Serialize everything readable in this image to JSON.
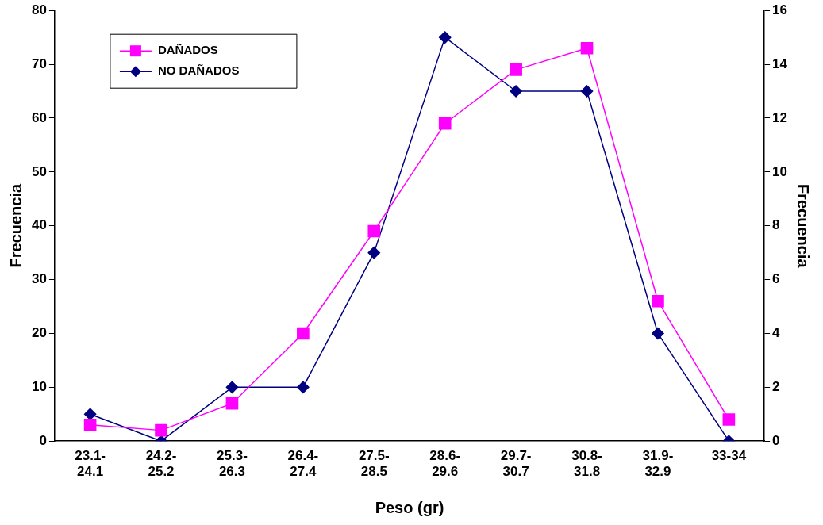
{
  "chart_data": {
    "type": "line",
    "xlabel": "Peso (gr)",
    "ylabel": "Frecuencia",
    "y2label": "Frecuencia",
    "categories": [
      "23.1- 24.1",
      "24.2- 25.2",
      "25.3- 26.3",
      "26.4- 27.4",
      "27.5- 28.5",
      "28.6- 29.6",
      "29.7- 30.7",
      "30.8- 31.8",
      "31.9- 32.9",
      "33-34"
    ],
    "series": [
      {
        "name": "DAÑADOS",
        "color": "#ff00ff",
        "marker": "square",
        "values": [
          3,
          2,
          7,
          20,
          39,
          59,
          69,
          73,
          26,
          4
        ]
      },
      {
        "name": "NO DAÑADOS",
        "color": "#000080",
        "marker": "diamond",
        "axis": "y2",
        "values": [
          1,
          0,
          2,
          2,
          7,
          15,
          13,
          13,
          4,
          0
        ]
      }
    ],
    "ylim": [
      0,
      80
    ],
    "yticks": [
      0,
      10,
      20,
      30,
      40,
      50,
      60,
      70,
      80
    ],
    "y2lim": [
      0,
      16
    ],
    "y2ticks": [
      0,
      2,
      4,
      6,
      8,
      10,
      12,
      14,
      16
    ],
    "grid": false,
    "legend": "top left",
    "line_style": "solid"
  }
}
